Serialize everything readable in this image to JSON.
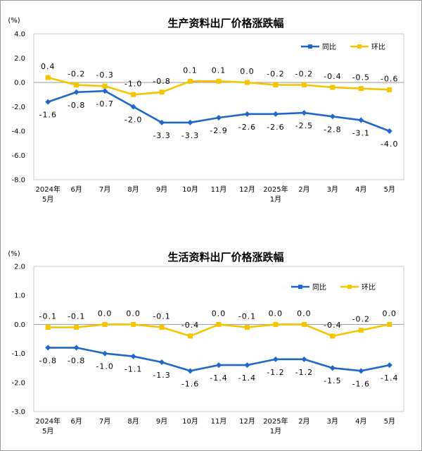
{
  "charts": [
    {
      "type": "line",
      "title": "生产资料出厂价格涨跌幅",
      "unit": "(%)",
      "ylim": [
        -8.0,
        4.0
      ],
      "yticks": [
        "4.0",
        "2.0",
        "0.0",
        "-2.0",
        "-4.0",
        "-6.0",
        "-8.0"
      ],
      "categories": [
        [
          "2024年",
          "5月"
        ],
        [
          "6月"
        ],
        [
          "7月"
        ],
        [
          "8月"
        ],
        [
          "9月"
        ],
        [
          "10月"
        ],
        [
          "11月"
        ],
        [
          "12月"
        ],
        [
          "2025年",
          "1月"
        ],
        [
          "2月"
        ],
        [
          "3月"
        ],
        [
          "4月"
        ],
        [
          "5月"
        ]
      ],
      "series": [
        {
          "name": "同比",
          "color": "#1f67c9",
          "values": [
            -1.6,
            -0.8,
            -0.7,
            -2.0,
            -3.3,
            -3.3,
            -2.9,
            -2.6,
            -2.6,
            -2.5,
            -2.8,
            -3.1,
            -4.0
          ],
          "labels": [
            "-1.6",
            "-0.8",
            "-0.7",
            "-2.0",
            "-3.3",
            "-3.3",
            "-2.9",
            "-2.6",
            "-2.6",
            "-2.5",
            "-2.8",
            "-3.1",
            "-4.0"
          ]
        },
        {
          "name": "环比",
          "color": "#f5c400",
          "values": [
            0.4,
            -0.2,
            -0.3,
            -1.0,
            -0.8,
            0.1,
            0.1,
            0.0,
            -0.2,
            -0.2,
            -0.4,
            -0.5,
            -0.6
          ],
          "labels": [
            "0.4",
            "-0.2",
            "-0.3",
            "-1.0",
            "-0.8",
            "0.1",
            "0.1",
            "0.0",
            "-0.2",
            "-0.2",
            "-0.4",
            "-0.5",
            "-0.6"
          ]
        }
      ]
    },
    {
      "type": "line",
      "title": "生活资料出厂价格涨跌幅",
      "unit": "(%)",
      "ylim": [
        -3.0,
        2.0
      ],
      "yticks": [
        "2.0",
        "1.0",
        "0.0",
        "-1.0",
        "-2.0",
        "-3.0"
      ],
      "categories": [
        [
          "2024年",
          "5月"
        ],
        [
          "6月"
        ],
        [
          "7月"
        ],
        [
          "8月"
        ],
        [
          "9月"
        ],
        [
          "10月"
        ],
        [
          "11月"
        ],
        [
          "12月"
        ],
        [
          "2025年",
          "1月"
        ],
        [
          "2月"
        ],
        [
          "3月"
        ],
        [
          "4月"
        ],
        [
          "5月"
        ]
      ],
      "series": [
        {
          "name": "同比",
          "color": "#1f67c9",
          "values": [
            -0.8,
            -0.8,
            -1.0,
            -1.1,
            -1.3,
            -1.6,
            -1.4,
            -1.4,
            -1.2,
            -1.2,
            -1.5,
            -1.6,
            -1.4
          ],
          "labels": [
            "-0.8",
            "-0.8",
            "-1.0",
            "-1.1",
            "-1.3",
            "-1.6",
            "-1.4",
            "-1.4",
            "-1.2",
            "-1.2",
            "-1.5",
            "-1.6",
            "-1.4"
          ]
        },
        {
          "name": "环比",
          "color": "#f5c400",
          "values": [
            -0.1,
            -0.1,
            0.0,
            0.0,
            -0.1,
            -0.4,
            0.0,
            -0.1,
            0.0,
            0.0,
            -0.4,
            -0.2,
            0.0
          ],
          "labels": [
            "-0.1",
            "-0.1",
            "0.0",
            "0.0",
            "-0.1",
            "-0.4",
            "0.0",
            "-0.1",
            "0.0",
            "0.0",
            "-0.4",
            "-0.2",
            "0.0"
          ]
        }
      ]
    }
  ]
}
